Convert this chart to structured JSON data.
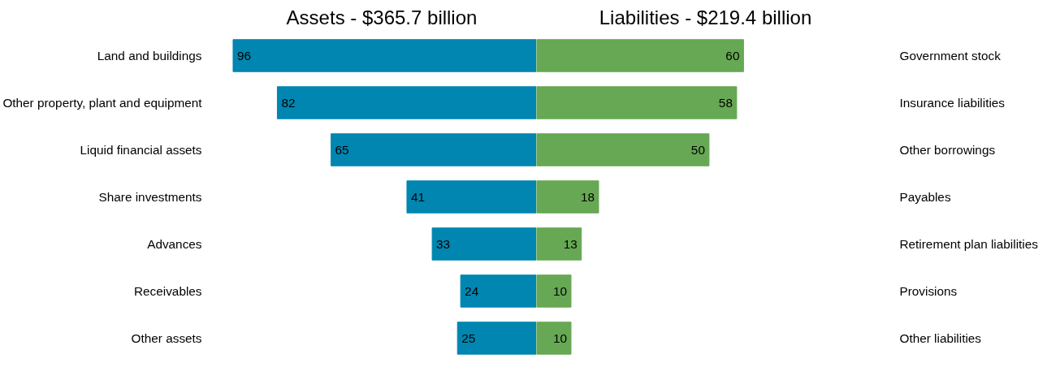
{
  "chart_data": [
    {
      "type": "bar",
      "orientation": "horizontal",
      "title": "Assets - $365.7 billion",
      "categories": [
        "Land and buildings",
        "Other property, plant and equipment",
        "Liquid financial assets",
        "Share investments",
        "Advances",
        "Receivables",
        "Other assets"
      ],
      "values": [
        96,
        82,
        65,
        41,
        33,
        24,
        25
      ],
      "color": "#0086b0",
      "data_labels": true
    },
    {
      "type": "bar",
      "orientation": "horizontal",
      "title": "Liabilities - $219.4 billion",
      "categories": [
        "Government stock",
        "Insurance liabilities",
        "Other borrowings",
        "Payables",
        "Retirement plan liabilities",
        "Provisions",
        "Other liabilities"
      ],
      "values": [
        60,
        58,
        50,
        18,
        13,
        10,
        10
      ],
      "color": "#66a853",
      "data_labels": true
    }
  ]
}
